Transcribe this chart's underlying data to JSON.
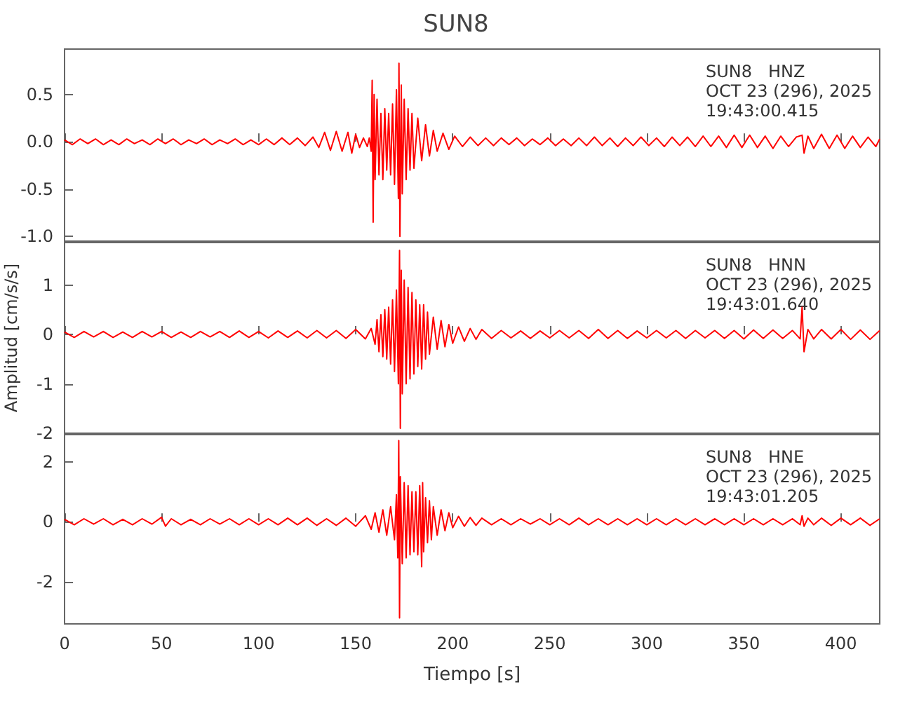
{
  "chart_data": [
    {
      "type": "line",
      "title": "SUN8",
      "marker": "none",
      "tick_labels": "y",
      "xlim": [
        0,
        420
      ],
      "xticks": [
        0,
        50,
        100,
        150,
        200,
        250,
        300,
        350,
        400
      ],
      "ylim": [
        -1.05,
        0.98
      ],
      "yticks": [
        {
          "value": -1,
          "label": "-1.0"
        },
        -0.5,
        {
          "value": 0,
          "label": "0.0"
        },
        0.5
      ],
      "annotations": [
        "SUN8   HNZ",
        "OCT 23 (296), 2025",
        "19:43:00.415"
      ],
      "series": [
        {
          "color": "#ff0000",
          "x": [
            0,
            4,
            8,
            12,
            16,
            20,
            24,
            28,
            32,
            36,
            40,
            44,
            48,
            52,
            56,
            60,
            64,
            68,
            72,
            76,
            80,
            84,
            88,
            92,
            96,
            100,
            104,
            108,
            112,
            116,
            120,
            124,
            128,
            131,
            134,
            137,
            140,
            143,
            146,
            148,
            150,
            152,
            154,
            156,
            157,
            158,
            158.5,
            159,
            159.5,
            160,
            161,
            162,
            163,
            164,
            165,
            166,
            167,
            168,
            169,
            170,
            171,
            172,
            172.3,
            172.8,
            173.5,
            174,
            175,
            176,
            177,
            178,
            179,
            180,
            182,
            184,
            186,
            188,
            190,
            192,
            195,
            198,
            201,
            205,
            209,
            213,
            217,
            221,
            225,
            229,
            233,
            237,
            241,
            245,
            249,
            253,
            257,
            261,
            265,
            269,
            273,
            277,
            281,
            285,
            289,
            293,
            297,
            301,
            305,
            309,
            313,
            317,
            321,
            325,
            329,
            333,
            337,
            341,
            345,
            349,
            353,
            357,
            361,
            365,
            369,
            373,
            377,
            380,
            381,
            383,
            386,
            390,
            394,
            398,
            402,
            406,
            410,
            414,
            418,
            420
          ],
          "values": [
            0.02,
            -0.03,
            0.03,
            -0.02,
            0.03,
            -0.03,
            0.02,
            -0.03,
            0.03,
            -0.02,
            0.02,
            -0.03,
            0.03,
            -0.02,
            0.03,
            -0.03,
            0.02,
            -0.02,
            0.03,
            -0.03,
            0.02,
            -0.02,
            0.03,
            -0.03,
            0.02,
            -0.03,
            0.03,
            -0.03,
            0.04,
            -0.03,
            0.04,
            -0.04,
            0.05,
            -0.06,
            0.1,
            -0.09,
            0.11,
            -0.1,
            0.1,
            -0.12,
            0.08,
            -0.06,
            0.04,
            -0.05,
            0.04,
            -0.1,
            0.65,
            -0.85,
            0.5,
            -0.4,
            0.45,
            -0.35,
            0.3,
            -0.4,
            0.35,
            -0.3,
            0.3,
            -0.35,
            0.4,
            -0.45,
            0.55,
            -0.6,
            0.83,
            -1.0,
            0.6,
            -0.55,
            0.45,
            -0.4,
            0.35,
            -0.3,
            0.3,
            -0.28,
            0.25,
            -0.2,
            0.18,
            -0.15,
            0.12,
            -0.1,
            0.09,
            -0.08,
            0.06,
            -0.05,
            0.05,
            -0.04,
            0.04,
            -0.04,
            0.04,
            -0.03,
            0.04,
            -0.04,
            0.03,
            -0.03,
            0.04,
            -0.04,
            0.03,
            -0.04,
            0.04,
            -0.04,
            0.05,
            -0.04,
            0.04,
            -0.05,
            0.04,
            -0.04,
            0.05,
            -0.04,
            0.04,
            -0.05,
            0.05,
            -0.04,
            0.05,
            -0.05,
            0.06,
            -0.05,
            0.06,
            -0.06,
            0.07,
            -0.06,
            0.07,
            -0.06,
            0.06,
            -0.07,
            0.06,
            -0.05,
            0.05,
            0.07,
            -0.12,
            0.06,
            -0.07,
            0.08,
            -0.07,
            0.07,
            -0.07,
            0.06,
            -0.06,
            0.05,
            -0.05,
            0.03
          ]
        }
      ]
    },
    {
      "type": "line",
      "ylabel": "Amplitud [cm/s/s]",
      "marker": "none",
      "tick_labels": "y",
      "xlim": [
        0,
        420
      ],
      "xticks": [
        0,
        50,
        100,
        150,
        200,
        250,
        300,
        350,
        400
      ],
      "ylim": [
        -2,
        1.86
      ],
      "yticks": [
        -2,
        -1,
        0,
        1
      ],
      "annotations": [
        "SUN8   HNN",
        "OCT 23 (296), 2025",
        "19:43:01.640"
      ],
      "series": [
        {
          "color": "#ff0000",
          "x": [
            0,
            5,
            10,
            15,
            20,
            25,
            30,
            35,
            40,
            45,
            50,
            55,
            60,
            65,
            70,
            75,
            80,
            85,
            90,
            95,
            100,
            105,
            110,
            115,
            120,
            125,
            130,
            135,
            140,
            145,
            150,
            155,
            158,
            160,
            161,
            162,
            163,
            164,
            165,
            166,
            167,
            168,
            169,
            170,
            171,
            172,
            172.6,
            173,
            173.5,
            174,
            175,
            176,
            177,
            178,
            179,
            180,
            181,
            182,
            183,
            184,
            185,
            186,
            187,
            188,
            190,
            192,
            194,
            196,
            198,
            200,
            203,
            206,
            209,
            212,
            215,
            220,
            225,
            230,
            235,
            240,
            245,
            250,
            255,
            260,
            265,
            270,
            275,
            280,
            285,
            290,
            295,
            300,
            305,
            310,
            315,
            320,
            325,
            330,
            335,
            340,
            345,
            350,
            355,
            360,
            365,
            370,
            375,
            379,
            380,
            381,
            383,
            386,
            390,
            395,
            400,
            405,
            410,
            415,
            420
          ],
          "values": [
            0.05,
            -0.06,
            0.06,
            -0.05,
            0.06,
            -0.06,
            0.05,
            -0.06,
            0.06,
            -0.05,
            0.06,
            -0.06,
            0.05,
            -0.06,
            0.06,
            -0.05,
            0.06,
            -0.06,
            0.07,
            -0.06,
            0.06,
            -0.07,
            0.07,
            -0.06,
            0.07,
            -0.07,
            0.08,
            -0.07,
            0.08,
            -0.08,
            0.1,
            -0.09,
            0.12,
            -0.2,
            0.3,
            -0.35,
            0.4,
            -0.45,
            0.5,
            -0.5,
            0.55,
            -0.6,
            0.7,
            -0.75,
            0.9,
            -1.0,
            1.7,
            -1.9,
            1.3,
            -1.2,
            1.1,
            -1.0,
            0.95,
            -0.9,
            0.85,
            -0.8,
            0.7,
            -0.65,
            0.6,
            -0.7,
            0.6,
            -0.5,
            0.45,
            -0.4,
            0.35,
            -0.3,
            0.28,
            -0.25,
            0.2,
            -0.18,
            0.15,
            -0.14,
            0.12,
            -0.1,
            0.1,
            -0.08,
            0.08,
            -0.07,
            0.07,
            -0.08,
            0.07,
            -0.07,
            0.08,
            -0.07,
            0.08,
            -0.08,
            0.1,
            -0.08,
            0.08,
            -0.08,
            0.07,
            -0.07,
            0.08,
            -0.07,
            0.08,
            -0.08,
            0.08,
            -0.07,
            0.08,
            -0.08,
            0.08,
            -0.09,
            0.09,
            -0.08,
            0.09,
            -0.08,
            0.08,
            -0.09,
            0.55,
            -0.35,
            0.1,
            -0.09,
            0.1,
            -0.09,
            0.1,
            -0.1,
            0.09,
            -0.1,
            0.08
          ]
        }
      ]
    },
    {
      "type": "line",
      "xlabel": "Tiempo [s]",
      "marker": "none",
      "xlim": [
        0,
        420
      ],
      "xticks": [
        0,
        50,
        100,
        150,
        200,
        250,
        300,
        350,
        400
      ],
      "ylim": [
        -3.4,
        2.9
      ],
      "yticks": [
        -2,
        0,
        2
      ],
      "annotations": [
        "SUN8   HNE",
        "OCT 23 (296), 2025",
        "19:43:01.205"
      ],
      "series": [
        {
          "color": "#ff0000",
          "x": [
            0,
            5,
            10,
            15,
            20,
            25,
            30,
            35,
            40,
            45,
            50,
            52,
            55,
            60,
            65,
            70,
            75,
            80,
            85,
            90,
            95,
            100,
            105,
            110,
            115,
            120,
            125,
            130,
            135,
            140,
            145,
            150,
            155,
            158,
            160,
            162,
            164,
            166,
            168,
            170,
            171,
            171.7,
            172.2,
            172.6,
            173,
            174,
            175,
            176,
            177,
            178,
            179,
            180,
            181,
            182,
            183,
            184,
            184.5,
            185,
            186,
            187,
            188,
            189,
            190,
            192,
            194,
            196,
            198,
            200,
            203,
            206,
            209,
            212,
            215,
            220,
            225,
            230,
            235,
            240,
            245,
            250,
            255,
            260,
            265,
            270,
            275,
            280,
            285,
            290,
            295,
            300,
            305,
            310,
            315,
            320,
            325,
            330,
            335,
            340,
            345,
            350,
            355,
            360,
            365,
            370,
            375,
            379,
            380,
            381,
            383,
            386,
            390,
            395,
            400,
            405,
            410,
            415,
            420
          ],
          "values": [
            0.08,
            -0.1,
            0.1,
            -0.08,
            0.1,
            -0.1,
            0.08,
            -0.1,
            0.1,
            -0.08,
            0.15,
            -0.15,
            0.1,
            -0.1,
            0.08,
            -0.1,
            0.1,
            -0.08,
            0.1,
            -0.1,
            0.1,
            -0.1,
            0.1,
            -0.1,
            0.12,
            -0.1,
            0.12,
            -0.12,
            0.1,
            -0.12,
            0.12,
            -0.15,
            0.2,
            -0.25,
            0.3,
            -0.35,
            0.4,
            -0.45,
            0.5,
            -0.6,
            0.9,
            -1.2,
            2.7,
            -3.2,
            1.5,
            -1.4,
            1.3,
            -1.2,
            1.2,
            -1.1,
            1.0,
            -1.0,
            1.0,
            -1.1,
            1.2,
            -1.5,
            1.3,
            -1.0,
            0.8,
            -0.7,
            0.7,
            -0.6,
            0.5,
            -0.45,
            0.4,
            -0.3,
            0.3,
            -0.2,
            0.18,
            -0.15,
            0.14,
            -0.12,
            0.12,
            -0.1,
            0.1,
            -0.1,
            0.1,
            -0.08,
            0.1,
            -0.1,
            0.1,
            -0.1,
            0.12,
            -0.1,
            0.1,
            -0.1,
            0.1,
            -0.1,
            0.1,
            -0.1,
            0.1,
            -0.1,
            0.1,
            -0.1,
            0.1,
            -0.1,
            0.1,
            -0.1,
            0.1,
            -0.1,
            0.1,
            -0.1,
            0.1,
            -0.1,
            0.1,
            -0.1,
            0.2,
            -0.15,
            0.12,
            -0.1,
            0.12,
            -0.12,
            0.12,
            -0.1,
            0.12,
            -0.12,
            0.1
          ]
        }
      ]
    }
  ]
}
